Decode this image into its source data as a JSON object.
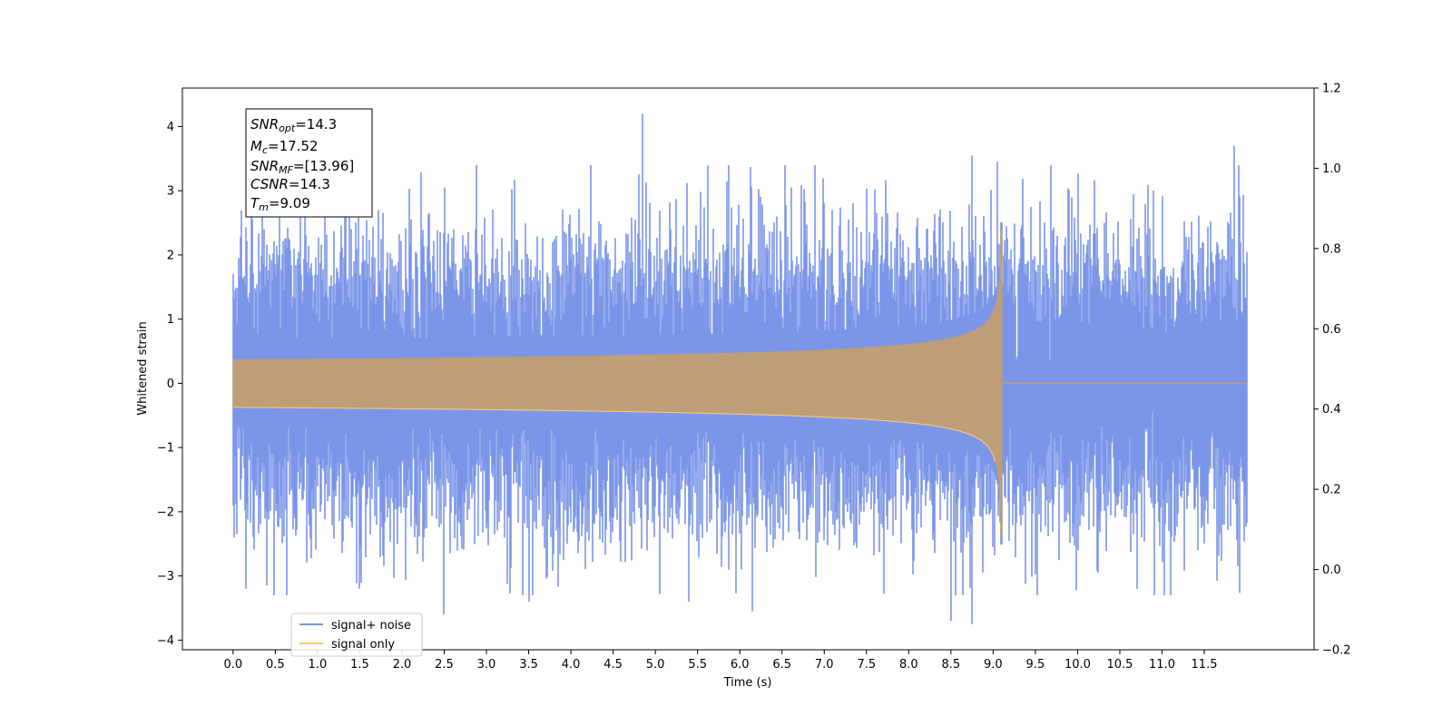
{
  "chart_data": {
    "type": "line",
    "title": "",
    "xlabel": "Time (s)",
    "ylabel": "Whitened strain",
    "xlim": [
      -0.6,
      12.8
    ],
    "ylim": [
      -4.15,
      4.6
    ],
    "y2lim": [
      -0.2,
      1.2
    ],
    "grid": false,
    "legend_position": "lower-left",
    "xticks": [
      0.0,
      0.5,
      1.0,
      1.5,
      2.0,
      2.5,
      3.0,
      3.5,
      4.0,
      4.5,
      5.0,
      5.5,
      6.0,
      6.5,
      7.0,
      7.5,
      8.0,
      8.5,
      9.0,
      9.5,
      10.0,
      10.5,
      11.0,
      11.5
    ],
    "xtick_labels": [
      "0.0",
      "0.5",
      "1.0",
      "1.5",
      "2.0",
      "2.5",
      "3.0",
      "3.5",
      "4.0",
      "4.5",
      "5.0",
      "5.5",
      "6.0",
      "6.5",
      "7.0",
      "7.5",
      "8.0",
      "8.5",
      "9.0",
      "9.5",
      "10.0",
      "10.5",
      "11.0",
      "11.5"
    ],
    "yticks": [
      -4,
      -3,
      -2,
      -1,
      0,
      1,
      2,
      3,
      4
    ],
    "ytick_labels": [
      "−4",
      "−3",
      "−2",
      "−1",
      "0",
      "1",
      "2",
      "3",
      "4"
    ],
    "y2ticks": [
      -0.2,
      0.0,
      0.2,
      0.4,
      0.6,
      0.8,
      1.0,
      1.2
    ],
    "y2tick_labels": [
      "−0.2",
      "0.0",
      "0.2",
      "0.4",
      "0.6",
      "0.8",
      "1.0",
      "1.2"
    ],
    "series": [
      {
        "name": "signal+ noise",
        "color": "#7b96e8",
        "t_range": [
          0.0,
          12.0
        ],
        "noise_sigma": 1.0,
        "peaks": [
          {
            "t": 4.85,
            "y": 4.2
          },
          {
            "t": 11.85,
            "y": 3.7
          },
          {
            "t": 8.75,
            "y": 3.55
          },
          {
            "t": 9.05,
            "y": 3.45
          },
          {
            "t": 2.5,
            "y": -3.6
          },
          {
            "t": 8.75,
            "y": -3.75
          },
          {
            "t": 8.5,
            "y": -3.7
          },
          {
            "t": 6.15,
            "y": -3.55
          },
          {
            "t": 0.15,
            "y": -3.2
          },
          {
            "t": 1.5,
            "y": -3.2
          },
          {
            "t": 3.5,
            "y": -3.4
          },
          {
            "t": 5.4,
            "y": -3.4
          }
        ]
      },
      {
        "name": "signal only",
        "color": "#ffc870",
        "overlap_color": "#bd9e77",
        "t_range": [
          0.0,
          12.0
        ],
        "merger_time": 9.09,
        "peak_amplitude": 2.4,
        "start_amplitude": 0.03
      }
    ],
    "annotations": {
      "snr_opt": {
        "symbol": "SNR",
        "sub": "opt",
        "value": "=14.3"
      },
      "mc": {
        "symbol": "M",
        "sub": "c",
        "value": "=17.52"
      },
      "snr_mf": {
        "symbol": "SNR",
        "sub": "MF",
        "value": "=[13.96]"
      },
      "csnr": {
        "symbol": "CSNR",
        "sub": "",
        "value": "=14.3"
      },
      "tm": {
        "symbol": "T",
        "sub": "m",
        "value": "=9.09"
      }
    }
  }
}
